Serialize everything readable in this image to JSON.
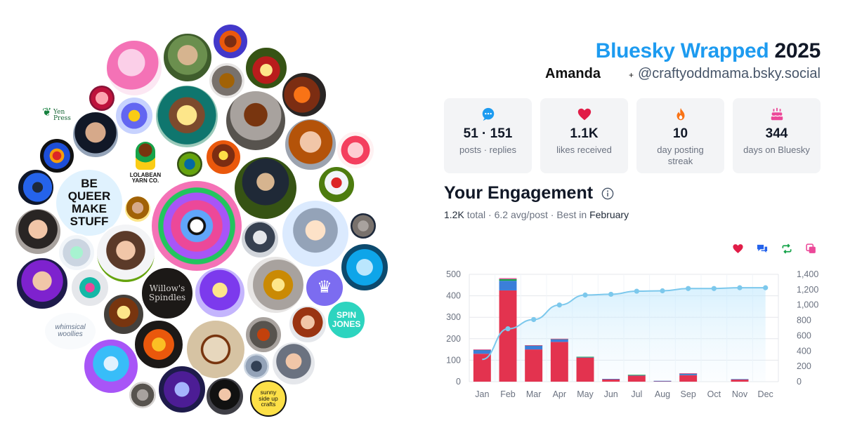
{
  "header": {
    "brand": "Bluesky Wrapped",
    "year": "2025",
    "display_name": "Amanda",
    "plus": "+",
    "handle": "@craftyoddmama.bsky.social"
  },
  "stats": [
    {
      "icon": "chat-bubble-icon",
      "color": "#1d9bf0",
      "value": "51 · 151",
      "label": "posts · replies"
    },
    {
      "icon": "heart-icon",
      "color": "#e11d48",
      "value": "1.1K",
      "label": "likes received"
    },
    {
      "icon": "flame-icon",
      "color": "#f97316",
      "value": "10",
      "label": "day posting streak"
    },
    {
      "icon": "cake-icon",
      "color": "#ec4899",
      "value": "344",
      "label": "days on Bluesky"
    }
  ],
  "engagement": {
    "title": "Your Engagement",
    "total": "1.2K",
    "total_word": "total",
    "avg": "6.2 avg/post",
    "best_prefix": "Best in",
    "best_month": "February"
  },
  "legend": [
    {
      "icon": "heart-icon",
      "color": "#e11d48"
    },
    {
      "icon": "reply-icon",
      "color": "#2563eb"
    },
    {
      "icon": "repost-icon",
      "color": "#16a34a"
    },
    {
      "icon": "quote-icon",
      "color": "#ec4899"
    }
  ],
  "collage": {
    "labels": {
      "yen_press": "Yen Press",
      "be_queer": "BE QUEER MAKE STUFF",
      "lolabean": "LOLABEAN YARN CO.",
      "willows": "Willow's Spindles",
      "spin_jones": "SPIN JONES",
      "woollies": "whimsical woollies",
      "sunny": "sunny side up crafts"
    }
  },
  "chart_data": {
    "type": "bar",
    "categories": [
      "Jan",
      "Feb",
      "Mar",
      "Apr",
      "May",
      "Jun",
      "Jul",
      "Aug",
      "Sep",
      "Oct",
      "Nov",
      "Dec"
    ],
    "series": [
      {
        "values": [
          130,
          425,
          150,
          185,
          112,
          12,
          28,
          3,
          30,
          0,
          10,
          0
        ],
        "color": "#e3334f"
      },
      {
        "values": [
          17,
          45,
          17,
          12,
          3,
          1,
          3,
          1,
          7,
          0,
          2,
          0
        ],
        "color": "#3b7fd9"
      },
      {
        "values": [
          2,
          8,
          2,
          2,
          1,
          0,
          1,
          0,
          1,
          0,
          0,
          0
        ],
        "color": "#16a34a"
      },
      {
        "values": [
          1,
          4,
          1,
          1,
          0,
          0,
          0,
          0,
          1,
          0,
          0,
          0
        ],
        "color": "#ec4899"
      },
      {
        "type": "area",
        "axis": "right",
        "values": [
          290,
          690,
          810,
          1000,
          1130,
          1140,
          1180,
          1185,
          1215,
          1215,
          1225,
          1225
        ],
        "color": "#7cc8ec"
      }
    ],
    "ylim": [
      0,
      500
    ],
    "yticks": [
      0,
      100,
      200,
      300,
      400,
      500
    ],
    "y2lim": [
      0,
      1400
    ],
    "y2ticks": [
      "0",
      "200",
      "400",
      "600",
      "800",
      "1,000",
      "1,200",
      "1,400"
    ],
    "grid": true
  }
}
